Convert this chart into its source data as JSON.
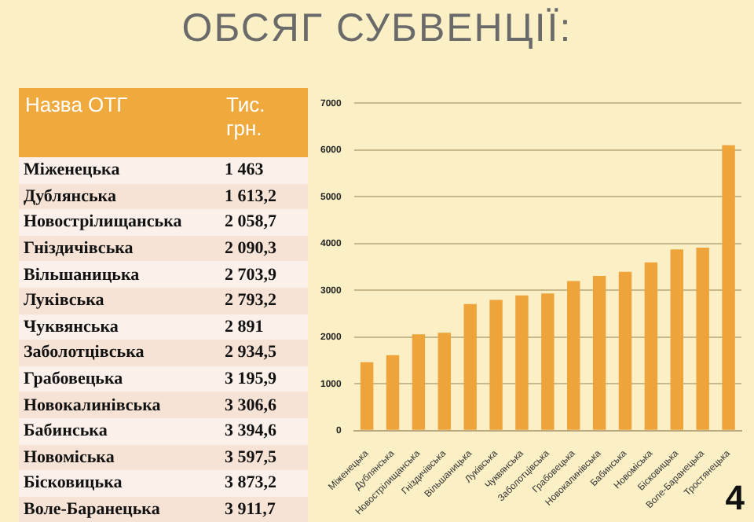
{
  "chart_data": {
    "type": "bar",
    "title": "ОБСЯГ СУБВЕНЦІЇ:",
    "categories": [
      "Міженецька",
      "Дублянська",
      "Новострілищанська",
      "Гніздичівська",
      "Вільшаницька",
      "Луківська",
      "Чуквянська",
      "Заболотцівська",
      "Грабовецька",
      "Новокалинівська",
      "Бабинська",
      "Новоміська",
      "Бісковицька",
      "Воле-Баранецька",
      "Тростянецька"
    ],
    "values": [
      1463,
      1613.2,
      2058.7,
      2090.3,
      2703.9,
      2793.2,
      2891,
      2934.5,
      3195.9,
      3306.6,
      3394.6,
      3597.5,
      3873.2,
      3911.7,
      6100
    ],
    "color": "#eea43a",
    "ylim": [
      0,
      7000
    ],
    "yticks": [
      0,
      1000,
      2000,
      3000,
      4000,
      5000,
      6000,
      7000
    ],
    "grid": "y",
    "annotations": [
      "Назва ОТГ",
      "Тис. грн.",
      "Міженецька",
      "1 463",
      "Дублянська",
      "1 613,2",
      "Новострілищанська",
      "2 058,7",
      "Гніздичівська",
      "2 090,3",
      "Вільшаницька",
      "2 703,9",
      "Луківська",
      "2 793,2",
      "Чуквянська",
      "2 891",
      "Заболотцівська",
      "2 934,5",
      "Грабовецька",
      "3 195,9",
      "Новокалинівська",
      "3 306,6",
      "Бабинська",
      "3 394,6",
      "Новоміська",
      "3 597,5",
      "Бісковицька",
      "3 873,2",
      "Воле-Баранецька",
      "3 911,7",
      "4"
    ]
  }
}
